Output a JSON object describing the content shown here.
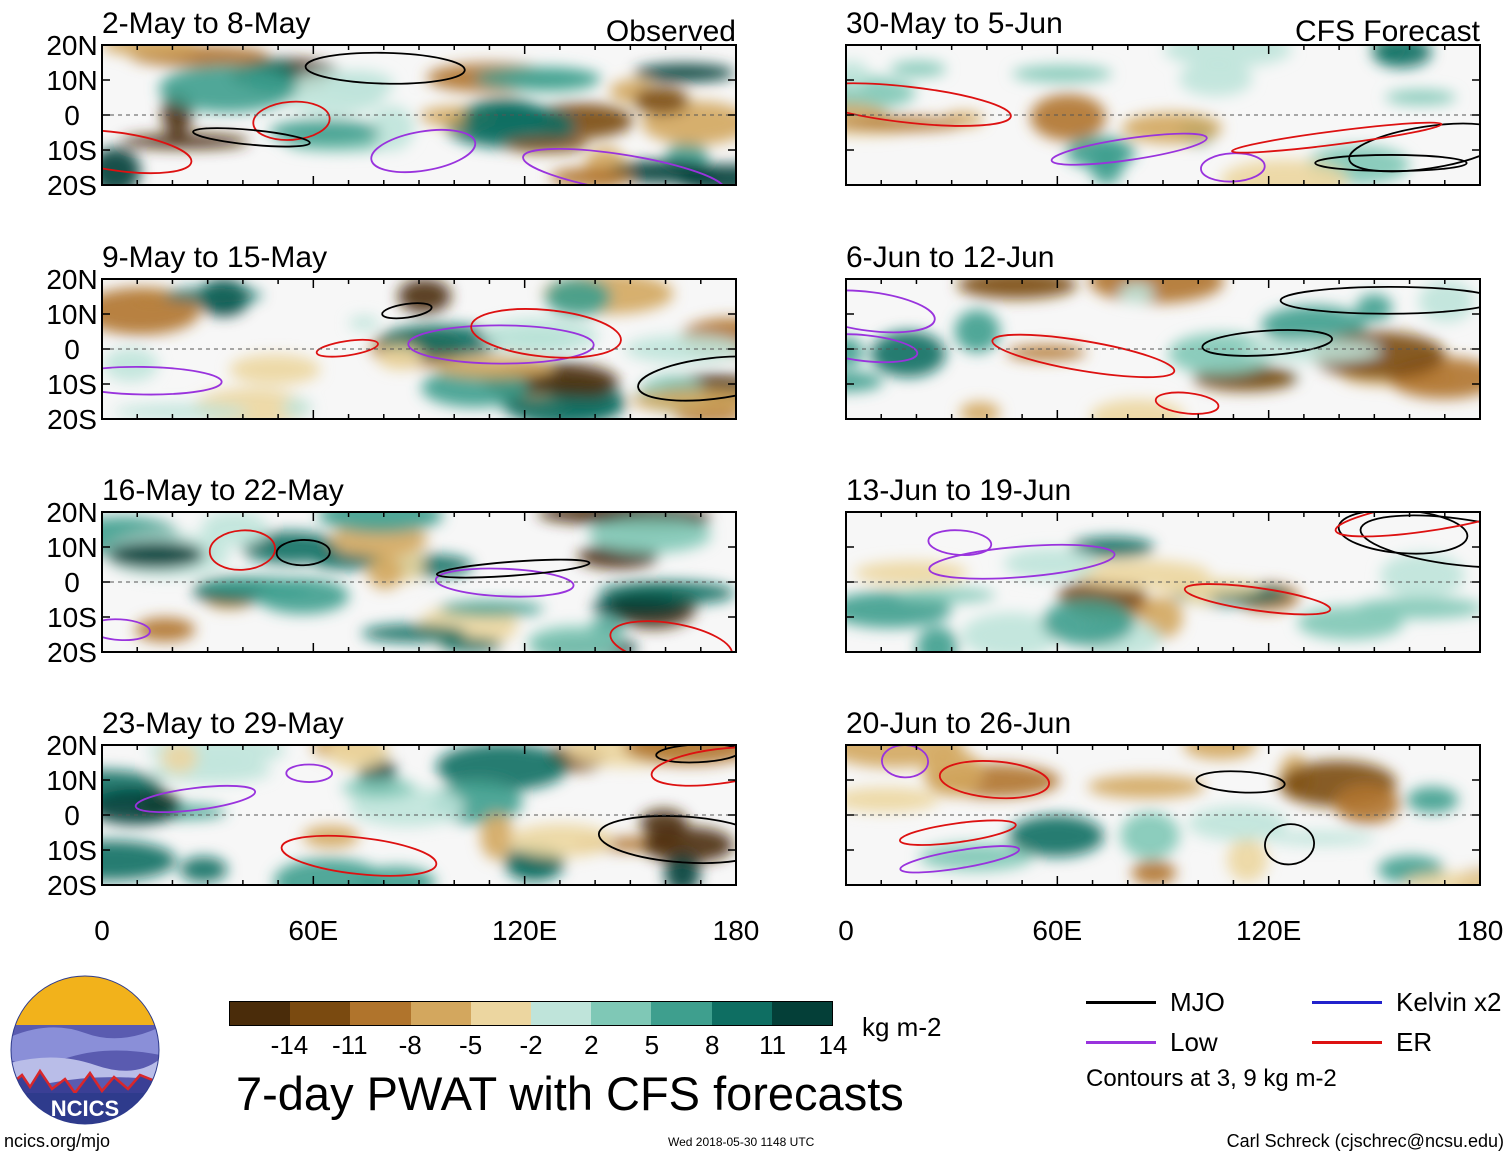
{
  "chart_data": {
    "type": "heatmap",
    "title": "7-day PWAT with CFS forecasts",
    "units": "kg m-2",
    "x_tick_labels": [
      "0",
      "60E",
      "120E",
      "180"
    ],
    "y_tick_labels": [
      "20N",
      "10N",
      "0",
      "10S",
      "20S"
    ],
    "xlim": [
      0,
      180
    ],
    "ylim": [
      -20,
      20
    ],
    "columns": [
      {
        "label": "Observed",
        "panels": [
          {
            "title": "2-May to 8-May"
          },
          {
            "title": "9-May to 15-May"
          },
          {
            "title": "16-May to 22-May"
          },
          {
            "title": "23-May to 29-May"
          }
        ]
      },
      {
        "label": "CFS Forecast",
        "panels": [
          {
            "title": "30-May to 5-Jun"
          },
          {
            "title": "6-Jun to 12-Jun"
          },
          {
            "title": "13-Jun to 19-Jun"
          },
          {
            "title": "20-Jun to 26-Jun"
          }
        ]
      }
    ],
    "colorbar": {
      "tick_labels": [
        "-14",
        "-11",
        "-8",
        "-5",
        "-2",
        "2",
        "5",
        "8",
        "11",
        "14"
      ],
      "colors": [
        "#4a2c0a",
        "#7a4a10",
        "#b0742c",
        "#d3a75e",
        "#ecd6a0",
        "#f7f7f7",
        "#bfe4da",
        "#7fc8b6",
        "#3e9f8e",
        "#0e6e62",
        "#043f38"
      ]
    },
    "legend": {
      "items": [
        {
          "label": "MJO",
          "color": "#000000"
        },
        {
          "label": "Kelvin x2",
          "color": "#2222cc"
        },
        {
          "label": "Low",
          "color": "#9933dd"
        },
        {
          "label": "ER",
          "color": "#dd1111"
        }
      ],
      "note": "Contours at 3, 9 kg m-2"
    }
  },
  "logo": {
    "text": "NCICS"
  },
  "footer": {
    "link": "ncics.org/mjo",
    "stamp": "Wed 2018-05-30 1148 UTC",
    "author": "Carl Schreck (cjschrec@ncsu.edu)"
  }
}
